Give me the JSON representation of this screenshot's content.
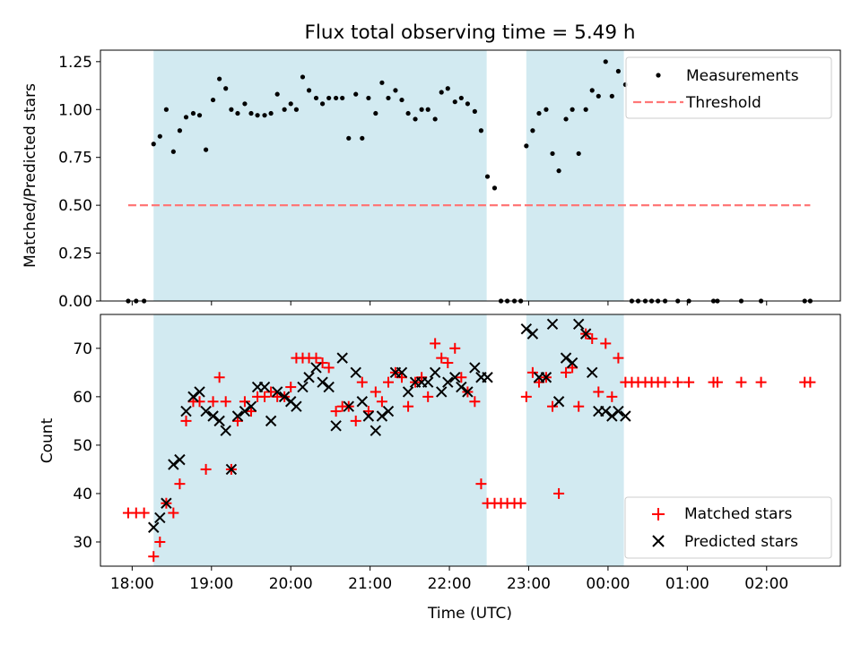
{
  "figure": {
    "title": "Flux total observing time = 5.49 h"
  },
  "chart_data": [
    {
      "type": "scatter",
      "panel": "top",
      "title": "Flux total observing time = 5.49 h",
      "xlabel": "",
      "ylabel": "Matched/Predicted stars",
      "x_units": "hours since 18:00 UTC",
      "xlim": [
        -0.4,
        8.93
      ],
      "ylim": [
        0,
        1.31
      ],
      "yticks": [
        0.0,
        0.25,
        0.5,
        0.75,
        1.0,
        1.25
      ],
      "ytick_labels": [
        "0.00",
        "0.25",
        "0.50",
        "0.75",
        "1.00",
        "1.25"
      ],
      "grid": false,
      "legend": {
        "placement": "top-right",
        "entries": [
          "Measurements",
          "Threshold"
        ]
      },
      "shaded_spans": [
        {
          "x0": 0.27,
          "x1": 4.47,
          "color": "#add8e6"
        },
        {
          "x0": 4.97,
          "x1": 6.2,
          "color": "#add8e6"
        }
      ],
      "series": [
        {
          "name": "Measurements",
          "marker": "dot",
          "color": "#000000",
          "x": [
            -0.05,
            0.05,
            0.15,
            0.27,
            0.35,
            0.43,
            0.52,
            0.6,
            0.68,
            0.77,
            0.85,
            0.93,
            1.02,
            1.1,
            1.18,
            1.25,
            1.33,
            1.42,
            1.5,
            1.58,
            1.67,
            1.75,
            1.83,
            1.92,
            2.0,
            2.07,
            2.15,
            2.23,
            2.32,
            2.4,
            2.48,
            2.57,
            2.65,
            2.73,
            2.82,
            2.9,
            2.98,
            3.07,
            3.15,
            3.23,
            3.32,
            3.4,
            3.48,
            3.57,
            3.65,
            3.73,
            3.82,
            3.9,
            3.98,
            4.07,
            4.15,
            4.23,
            4.32,
            4.4,
            4.48,
            4.57,
            4.65,
            4.73,
            4.82,
            4.9,
            4.97,
            5.05,
            5.13,
            5.22,
            5.3,
            5.38,
            5.47,
            5.55,
            5.63,
            5.72,
            5.8,
            5.88,
            5.97,
            6.05,
            6.13,
            6.22,
            6.3,
            6.38,
            6.47,
            6.55,
            6.63,
            6.72,
            6.88,
            7.02,
            7.33,
            7.38,
            7.68,
            7.93,
            8.48,
            8.55
          ],
          "y": [
            0.0,
            0.0,
            0.0,
            0.82,
            0.86,
            1.0,
            0.78,
            0.89,
            0.96,
            0.98,
            0.97,
            0.79,
            1.05,
            1.16,
            1.11,
            1.0,
            0.98,
            1.03,
            0.98,
            0.97,
            0.97,
            0.98,
            1.08,
            1.0,
            1.03,
            1.0,
            1.17,
            1.1,
            1.06,
            1.03,
            1.06,
            1.06,
            1.06,
            0.85,
            1.08,
            0.85,
            1.06,
            0.98,
            1.14,
            1.06,
            1.1,
            1.05,
            0.98,
            0.95,
            1.0,
            1.0,
            0.95,
            1.09,
            1.11,
            1.04,
            1.06,
            1.03,
            0.99,
            0.89,
            0.65,
            0.59,
            0.0,
            0.0,
            0.0,
            0.0,
            0.81,
            0.89,
            0.98,
            1.0,
            0.77,
            0.68,
            0.95,
            1.0,
            0.77,
            1.0,
            1.1,
            1.07,
            1.25,
            1.07,
            1.2,
            1.13,
            0.0,
            0.0,
            0.0,
            0.0,
            0.0,
            0.0,
            0.0,
            0.0,
            0.0,
            0.0,
            0.0,
            0.0,
            0.0,
            0.0
          ]
        },
        {
          "name": "Threshold",
          "line": "dashed",
          "color": "#ff7777",
          "x": [
            -0.05,
            8.55
          ],
          "y": [
            0.5,
            0.5
          ]
        }
      ]
    },
    {
      "type": "scatter",
      "panel": "bottom",
      "title": "",
      "xlabel": "Time (UTC)",
      "ylabel": "Count",
      "x_units": "hours since 18:00 UTC",
      "xlim": [
        -0.4,
        8.93
      ],
      "ylim": [
        25,
        77
      ],
      "yticks": [
        30,
        40,
        50,
        60,
        70
      ],
      "ytick_labels": [
        "30",
        "40",
        "50",
        "60",
        "70"
      ],
      "xticks": [
        0,
        1,
        2,
        3,
        4,
        5,
        6,
        7,
        8
      ],
      "xtick_labels": [
        "18:00",
        "19:00",
        "20:00",
        "21:00",
        "22:00",
        "23:00",
        "00:00",
        "01:00",
        "02:00"
      ],
      "grid": false,
      "legend": {
        "placement": "bottom-right",
        "entries": [
          "Matched stars",
          "Predicted stars"
        ]
      },
      "shaded_spans": [
        {
          "x0": 0.27,
          "x1": 4.47,
          "color": "#add8e6"
        },
        {
          "x0": 4.97,
          "x1": 6.2,
          "color": "#add8e6"
        }
      ],
      "series": [
        {
          "name": "Matched stars",
          "marker": "plus",
          "color": "#ff0000",
          "x": [
            -0.05,
            0.05,
            0.15,
            0.27,
            0.35,
            0.43,
            0.52,
            0.6,
            0.68,
            0.77,
            0.85,
            0.93,
            1.02,
            1.1,
            1.18,
            1.25,
            1.33,
            1.42,
            1.5,
            1.58,
            1.67,
            1.75,
            1.83,
            1.92,
            2.0,
            2.07,
            2.15,
            2.23,
            2.32,
            2.4,
            2.48,
            2.57,
            2.65,
            2.73,
            2.82,
            2.9,
            2.98,
            3.07,
            3.15,
            3.23,
            3.32,
            3.4,
            3.48,
            3.57,
            3.65,
            3.73,
            3.82,
            3.9,
            3.98,
            4.07,
            4.15,
            4.23,
            4.32,
            4.4,
            4.48,
            4.57,
            4.65,
            4.73,
            4.82,
            4.9,
            4.97,
            5.05,
            5.13,
            5.22,
            5.3,
            5.38,
            5.47,
            5.55,
            5.63,
            5.72,
            5.8,
            5.88,
            5.97,
            6.05,
            6.13,
            6.22,
            6.3,
            6.38,
            6.47,
            6.55,
            6.63,
            6.72,
            6.88,
            7.02,
            7.33,
            7.38,
            7.68,
            7.93,
            8.48,
            8.55
          ],
          "y": [
            36,
            36,
            36,
            27,
            30,
            38,
            36,
            42,
            55,
            59,
            59,
            45,
            59,
            64,
            59,
            45,
            55,
            59,
            57,
            60,
            60,
            61,
            60,
            60,
            62,
            68,
            68,
            68,
            68,
            67,
            66,
            57,
            58,
            58,
            55,
            63,
            57,
            61,
            59,
            63,
            65,
            64,
            58,
            63,
            64,
            60,
            71,
            68,
            67,
            70,
            64,
            61,
            59,
            42,
            38,
            38,
            38,
            38,
            38,
            38,
            60,
            65,
            63,
            64,
            58,
            40,
            65,
            66,
            58,
            73,
            72,
            61,
            71,
            60,
            68,
            63,
            63,
            63,
            63,
            63,
            63,
            63,
            63,
            63,
            63,
            63,
            63,
            63,
            63,
            63
          ]
        },
        {
          "name": "Predicted stars",
          "marker": "x",
          "color": "#000000",
          "x": [
            0.27,
            0.35,
            0.43,
            0.52,
            0.6,
            0.68,
            0.77,
            0.85,
            0.93,
            1.02,
            1.1,
            1.18,
            1.25,
            1.33,
            1.42,
            1.5,
            1.58,
            1.67,
            1.75,
            1.83,
            1.92,
            2.0,
            2.07,
            2.15,
            2.23,
            2.32,
            2.4,
            2.48,
            2.57,
            2.65,
            2.73,
            2.82,
            2.9,
            2.98,
            3.07,
            3.15,
            3.23,
            3.32,
            3.4,
            3.48,
            3.57,
            3.65,
            3.73,
            3.82,
            3.9,
            3.98,
            4.07,
            4.15,
            4.23,
            4.32,
            4.4,
            4.48,
            4.97,
            5.05,
            5.13,
            5.22,
            5.3,
            5.38,
            5.47,
            5.55,
            5.63,
            5.72,
            5.8,
            5.88,
            5.97,
            6.05,
            6.13,
            6.22
          ],
          "y": [
            33,
            35,
            38,
            46,
            47,
            57,
            60,
            61,
            57,
            56,
            55,
            53,
            45,
            56,
            57,
            58,
            62,
            62,
            55,
            61,
            60,
            59,
            58,
            62,
            64,
            66,
            63,
            62,
            54,
            68,
            58,
            65,
            59,
            56,
            53,
            56,
            57,
            65,
            65,
            61,
            63,
            63,
            63,
            65,
            61,
            63,
            64,
            62,
            61,
            66,
            64,
            64,
            74,
            73,
            64,
            64,
            75,
            59,
            68,
            67,
            75,
            73,
            65,
            57,
            57,
            56,
            57,
            56
          ]
        }
      ]
    }
  ]
}
